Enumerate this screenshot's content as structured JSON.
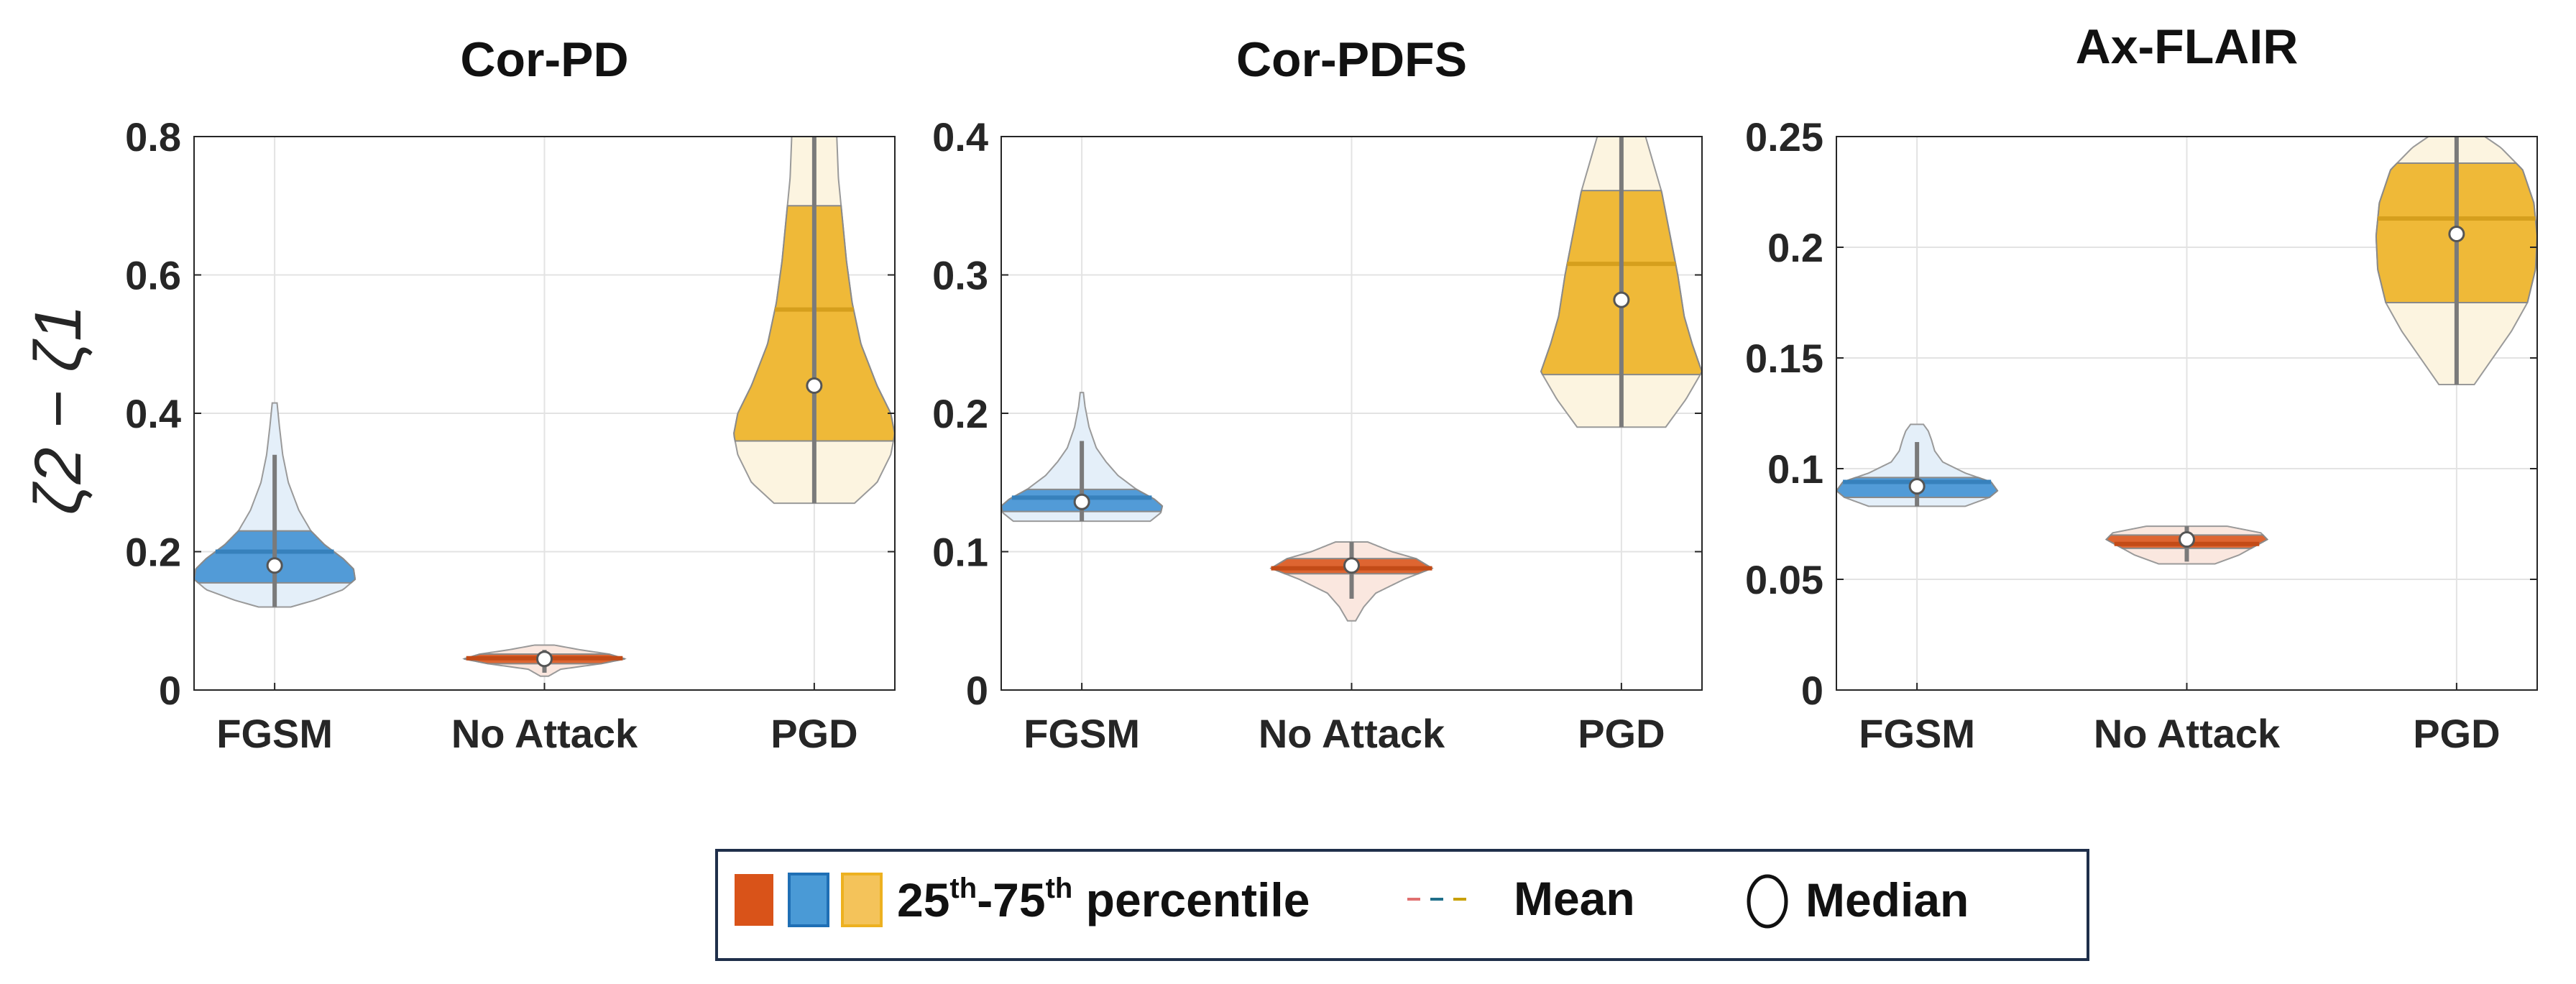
{
  "figure": {
    "ylabel": "ζ2 − ζ1",
    "legend": {
      "percentile_label": "25th-75th percentile",
      "percentile_base": "25",
      "percentile_th1": "th",
      "percentile_dash": "-75",
      "percentile_th2": "th",
      "percentile_rest": " percentile",
      "mean_label": "Mean",
      "median_label": "Median"
    },
    "colors": {
      "no_attack": "#d95319",
      "fgsm": "#3d8fd1",
      "pgd": "#edb120",
      "whisker": "#7a7a7a",
      "axis": "#262626",
      "grid": "#e3e3e3"
    }
  },
  "chart_data": [
    {
      "type": "violin",
      "title": "Cor-PD",
      "xlabel": "",
      "ylabel": "ζ2 − ζ1",
      "ylim": [
        0,
        0.8
      ],
      "yticks": [
        0,
        0.2,
        0.4,
        0.6,
        0.8
      ],
      "ytick_labels": [
        "0",
        "0.2",
        "0.4",
        "0.6",
        "0.8"
      ],
      "categories": [
        "FGSM",
        "No Attack",
        "PGD"
      ],
      "series": [
        {
          "name": "FGSM",
          "color": "#3d8fd1",
          "min": 0.12,
          "max": 0.415,
          "q1": 0.155,
          "q3": 0.23,
          "mean": 0.2,
          "median": 0.18,
          "whisker_low": 0.12,
          "whisker_high": 0.34,
          "profile": [
            [
              0.12,
              0.2
            ],
            [
              0.13,
              0.5
            ],
            [
              0.145,
              0.85
            ],
            [
              0.16,
              1.0
            ],
            [
              0.175,
              0.98
            ],
            [
              0.19,
              0.85
            ],
            [
              0.21,
              0.62
            ],
            [
              0.23,
              0.45
            ],
            [
              0.26,
              0.3
            ],
            [
              0.3,
              0.17
            ],
            [
              0.34,
              0.1
            ],
            [
              0.38,
              0.06
            ],
            [
              0.415,
              0.03
            ]
          ]
        },
        {
          "name": "No Attack",
          "color": "#d95319",
          "min": 0.02,
          "max": 0.065,
          "q1": 0.038,
          "q3": 0.052,
          "mean": 0.046,
          "median": 0.045,
          "whisker_low": 0.025,
          "whisker_high": 0.058,
          "profile": [
            [
              0.02,
              0.05
            ],
            [
              0.03,
              0.2
            ],
            [
              0.038,
              0.7
            ],
            [
              0.045,
              1.0
            ],
            [
              0.052,
              0.8
            ],
            [
              0.058,
              0.45
            ],
            [
              0.065,
              0.12
            ]
          ]
        },
        {
          "name": "PGD",
          "color": "#edb120",
          "min": 0.27,
          "max": 0.8,
          "q1": 0.36,
          "q3": 0.7,
          "mean": 0.55,
          "median": 0.44,
          "whisker_low": 0.27,
          "whisker_high": 0.8,
          "profile": [
            [
              0.27,
              0.5
            ],
            [
              0.3,
              0.78
            ],
            [
              0.34,
              0.95
            ],
            [
              0.37,
              1.0
            ],
            [
              0.4,
              0.95
            ],
            [
              0.44,
              0.78
            ],
            [
              0.5,
              0.58
            ],
            [
              0.56,
              0.47
            ],
            [
              0.62,
              0.4
            ],
            [
              0.68,
              0.35
            ],
            [
              0.74,
              0.3
            ],
            [
              0.8,
              0.28
            ]
          ]
        }
      ]
    },
    {
      "type": "violin",
      "title": "Cor-PDFS",
      "xlabel": "",
      "ylabel": "",
      "ylim": [
        0,
        0.4
      ],
      "yticks": [
        0,
        0.1,
        0.2,
        0.3,
        0.4
      ],
      "ytick_labels": [
        "0",
        "0.1",
        "0.2",
        "0.3",
        "0.4"
      ],
      "categories": [
        "FGSM",
        "No Attack",
        "PGD"
      ],
      "series": [
        {
          "name": "FGSM",
          "color": "#3d8fd1",
          "min": 0.122,
          "max": 0.215,
          "q1": 0.129,
          "q3": 0.145,
          "mean": 0.139,
          "median": 0.136,
          "whisker_low": 0.122,
          "whisker_high": 0.18,
          "profile": [
            [
              0.122,
              0.85
            ],
            [
              0.128,
              0.98
            ],
            [
              0.133,
              1.0
            ],
            [
              0.138,
              0.9
            ],
            [
              0.145,
              0.68
            ],
            [
              0.155,
              0.45
            ],
            [
              0.165,
              0.3
            ],
            [
              0.175,
              0.18
            ],
            [
              0.19,
              0.09
            ],
            [
              0.205,
              0.04
            ],
            [
              0.215,
              0.02
            ]
          ]
        },
        {
          "name": "No Attack",
          "color": "#d95319",
          "min": 0.05,
          "max": 0.107,
          "q1": 0.084,
          "q3": 0.095,
          "mean": 0.088,
          "median": 0.09,
          "whisker_low": 0.066,
          "whisker_high": 0.107,
          "profile": [
            [
              0.05,
              0.05
            ],
            [
              0.06,
              0.15
            ],
            [
              0.07,
              0.3
            ],
            [
              0.08,
              0.65
            ],
            [
              0.088,
              1.0
            ],
            [
              0.095,
              0.8
            ],
            [
              0.1,
              0.5
            ],
            [
              0.107,
              0.2
            ]
          ]
        },
        {
          "name": "PGD",
          "color": "#edb120",
          "min": 0.19,
          "max": 0.4,
          "q1": 0.228,
          "q3": 0.361,
          "mean": 0.308,
          "median": 0.282,
          "whisker_low": 0.19,
          "whisker_high": 0.4,
          "profile": [
            [
              0.19,
              0.55
            ],
            [
              0.21,
              0.8
            ],
            [
              0.23,
              1.0
            ],
            [
              0.25,
              0.88
            ],
            [
              0.27,
              0.78
            ],
            [
              0.3,
              0.7
            ],
            [
              0.33,
              0.6
            ],
            [
              0.36,
              0.5
            ],
            [
              0.38,
              0.4
            ],
            [
              0.4,
              0.3
            ]
          ]
        }
      ]
    },
    {
      "type": "violin",
      "title": "Ax-FLAIR",
      "xlabel": "",
      "ylabel": "",
      "ylim": [
        0,
        0.25
      ],
      "yticks": [
        0,
        0.05,
        0.1,
        0.15,
        0.2,
        0.25
      ],
      "ytick_labels": [
        "0",
        "0.05",
        "0.1",
        "0.15",
        "0.2",
        "0.25"
      ],
      "categories": [
        "FGSM",
        "No Attack",
        "PGD"
      ],
      "series": [
        {
          "name": "FGSM",
          "color": "#3d8fd1",
          "min": 0.083,
          "max": 0.12,
          "q1": 0.087,
          "q3": 0.096,
          "mean": 0.094,
          "median": 0.092,
          "whisker_low": 0.083,
          "whisker_high": 0.112,
          "profile": [
            [
              0.083,
              0.6
            ],
            [
              0.087,
              0.9
            ],
            [
              0.09,
              1.0
            ],
            [
              0.094,
              0.92
            ],
            [
              0.098,
              0.6
            ],
            [
              0.103,
              0.32
            ],
            [
              0.108,
              0.22
            ],
            [
              0.113,
              0.18
            ],
            [
              0.117,
              0.14
            ],
            [
              0.12,
              0.08
            ]
          ]
        },
        {
          "name": "No Attack",
          "color": "#d95319",
          "min": 0.057,
          "max": 0.074,
          "q1": 0.064,
          "q3": 0.07,
          "mean": 0.066,
          "median": 0.068,
          "whisker_low": 0.058,
          "whisker_high": 0.074,
          "profile": [
            [
              0.057,
              0.35
            ],
            [
              0.061,
              0.65
            ],
            [
              0.065,
              0.85
            ],
            [
              0.068,
              1.0
            ],
            [
              0.071,
              0.92
            ],
            [
              0.074,
              0.5
            ]
          ]
        },
        {
          "name": "PGD",
          "color": "#edb120",
          "min": 0.138,
          "max": 0.25,
          "q1": 0.175,
          "q3": 0.238,
          "mean": 0.213,
          "median": 0.206,
          "whisker_low": 0.138,
          "whisker_high": 0.25,
          "profile": [
            [
              0.138,
              0.22
            ],
            [
              0.15,
              0.45
            ],
            [
              0.162,
              0.68
            ],
            [
              0.175,
              0.88
            ],
            [
              0.19,
              0.98
            ],
            [
              0.205,
              1.0
            ],
            [
              0.22,
              0.96
            ],
            [
              0.235,
              0.82
            ],
            [
              0.245,
              0.55
            ],
            [
              0.25,
              0.35
            ]
          ]
        }
      ]
    }
  ]
}
